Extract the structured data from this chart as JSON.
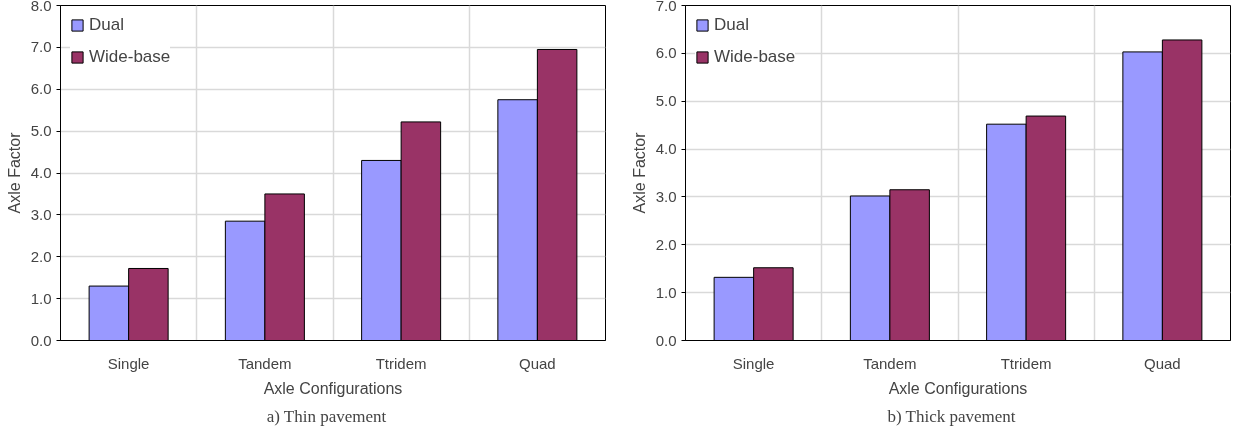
{
  "chart_data": [
    {
      "type": "bar",
      "xlabel": "Axle Configurations",
      "ylabel": "Axle Factor",
      "categories": [
        "Single",
        "Tandem",
        "Ttridem",
        "Quad"
      ],
      "series": [
        {
          "name": "Dual",
          "color": "#9999ff",
          "values": [
            1.3,
            2.85,
            4.3,
            5.75
          ]
        },
        {
          "name": "Wide-base",
          "color": "#993366",
          "values": [
            1.72,
            3.5,
            5.22,
            6.95
          ]
        }
      ],
      "ylim": [
        0,
        8
      ],
      "yticks": [
        {
          "value": 0,
          "label": "0.0"
        },
        {
          "value": 1,
          "label": "1.0"
        },
        {
          "value": 2,
          "label": "2.0"
        },
        {
          "value": 3,
          "label": "3.0"
        },
        {
          "value": 4,
          "label": "4.0"
        },
        {
          "value": 5,
          "label": "5.0"
        },
        {
          "value": 6,
          "label": "6.0"
        },
        {
          "value": 7,
          "label": "7.0"
        },
        {
          "value": 8,
          "label": "8.0"
        }
      ],
      "grid": true,
      "legend": "top left",
      "annotations": [
        "a)    Thin pavement"
      ]
    },
    {
      "type": "bar",
      "xlabel": "Axle Configurations",
      "ylabel": "Axle Factor",
      "categories": [
        "Single",
        "Tandem",
        "Ttridem",
        "Quad"
      ],
      "series": [
        {
          "name": "Dual",
          "color": "#9999ff",
          "values": [
            1.32,
            3.02,
            4.52,
            6.03
          ]
        },
        {
          "name": "Wide-base",
          "color": "#993366",
          "values": [
            1.52,
            3.15,
            4.69,
            6.28
          ]
        }
      ],
      "ylim": [
        0,
        7
      ],
      "yticks": [
        {
          "value": 0,
          "label": "0.0"
        },
        {
          "value": 1,
          "label": "1.0"
        },
        {
          "value": 2,
          "label": "2.0"
        },
        {
          "value": 3,
          "label": "3.0"
        },
        {
          "value": 4,
          "label": "4.0"
        },
        {
          "value": 5,
          "label": "5.0"
        },
        {
          "value": 6,
          "label": "6.0"
        },
        {
          "value": 7,
          "label": "7.0"
        }
      ],
      "grid": true,
      "legend": "top left",
      "annotations": [
        "b)    Thick pavement"
      ]
    }
  ]
}
